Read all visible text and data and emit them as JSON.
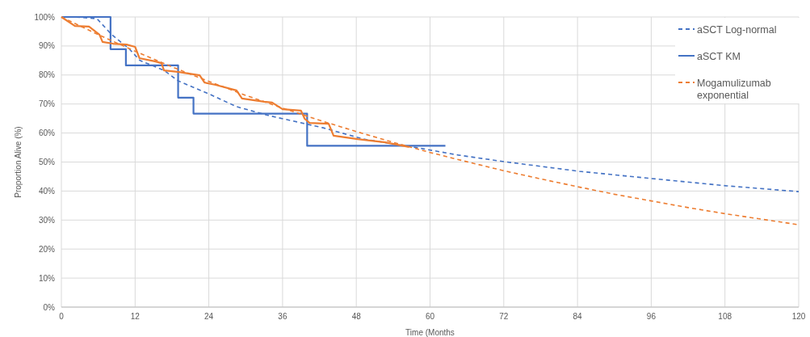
{
  "chart_data": {
    "type": "line",
    "xlabel": "Time (Months",
    "ylabel": "Proportion Alive (%)",
    "xlim": [
      0,
      120
    ],
    "xticks": [
      0,
      12,
      24,
      36,
      48,
      60,
      72,
      84,
      96,
      108,
      120
    ],
    "ylim": [
      0,
      100
    ],
    "yticks": [
      {
        "value": 0,
        "label": "0%"
      },
      {
        "value": 10,
        "label": "10%"
      },
      {
        "value": 20,
        "label": "20%"
      },
      {
        "value": 30,
        "label": "30%"
      },
      {
        "value": 40,
        "label": "40%"
      },
      {
        "value": 50,
        "label": "50%"
      },
      {
        "value": 60,
        "label": "60%"
      },
      {
        "value": 70,
        "label": "70%"
      },
      {
        "value": 80,
        "label": "80%"
      },
      {
        "value": 90,
        "label": "90%"
      },
      {
        "value": 100,
        "label": "100%"
      }
    ],
    "grid": true,
    "legend": "top right",
    "marker": "none",
    "series": [
      {
        "name": "aSCT Log-normal",
        "line_style": "dashed",
        "color": "#4472c4",
        "x": [
          0,
          3,
          5.8,
          8.2,
          11,
          12.8,
          16.7,
          19,
          24.2,
          28.5,
          33.8,
          42.6,
          49.2,
          58,
          64.6,
          72.2,
          84.3,
          96.1,
          108.3,
          120
        ],
        "values": [
          100,
          99.9,
          99.4,
          93.9,
          89.1,
          85,
          81.6,
          78,
          73.3,
          69.1,
          66,
          61.8,
          57.9,
          54.9,
          52.4,
          50.1,
          46.8,
          44.3,
          41.8,
          39.8
        ]
      },
      {
        "name": "aSCT KM",
        "type": "step",
        "line_style": "solid",
        "color": "#4472c4",
        "x": [
          0,
          8,
          10.5,
          19,
          21.5,
          40,
          62.5
        ],
        "values": [
          100,
          88.9,
          83.3,
          72.2,
          66.7,
          55.6,
          55.6
        ]
      },
      {
        "name": "Mogamulizumab exponential",
        "line_style": "dashed",
        "color": "#ed7d31",
        "x": [
          0,
          6,
          12,
          18,
          24,
          30,
          36,
          42,
          48,
          54,
          60,
          66,
          72,
          78,
          84,
          90,
          96,
          102,
          108,
          114,
          120
        ],
        "values": [
          100,
          93.9,
          88.2,
          82.8,
          77.8,
          73.0,
          68.6,
          64.4,
          60.5,
          56.8,
          53.3,
          50.1,
          47.0,
          44.2,
          41.5,
          38.9,
          36.6,
          34.3,
          32.2,
          30.3,
          28.4
        ]
      },
      {
        "line_style": "solid",
        "color": "#ed7d31",
        "x": [
          0,
          2.2,
          4.5,
          6.2,
          6.7,
          8.4,
          10.6,
          12,
          12.7,
          15.2,
          16.3,
          16.7,
          18.9,
          22.5,
          23.3,
          25.1,
          28.5,
          29.4,
          33,
          34.3,
          36,
          39,
          39.6,
          40.4,
          43.5,
          44.3,
          48.2,
          52.7,
          56.6
        ],
        "values": [
          100,
          96.9,
          96.7,
          93.9,
          91.4,
          90.8,
          90.5,
          89.7,
          85.8,
          84.7,
          84.1,
          81.6,
          81.1,
          79.9,
          77.4,
          76.6,
          74.7,
          71.9,
          70.8,
          70.5,
          68.2,
          67.7,
          64.9,
          63.5,
          63.2,
          59.1,
          57.9,
          56.8,
          55.2
        ]
      }
    ]
  }
}
